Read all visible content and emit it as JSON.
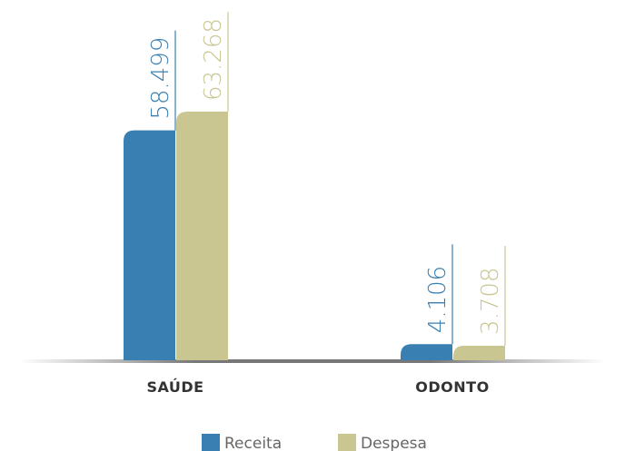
{
  "chart_data": {
    "type": "bar",
    "categories": [
      "SAÚDE",
      "ODONTO"
    ],
    "series": [
      {
        "name": "Receita",
        "color": "#3a7fb1",
        "values": [
          58499,
          4106
        ],
        "value_labels": [
          "58.499",
          "4.106"
        ]
      },
      {
        "name": "Despesa",
        "color": "#c9c691",
        "values": [
          63268,
          3708
        ],
        "value_labels": [
          "63.268",
          "3.708"
        ]
      }
    ]
  }
}
